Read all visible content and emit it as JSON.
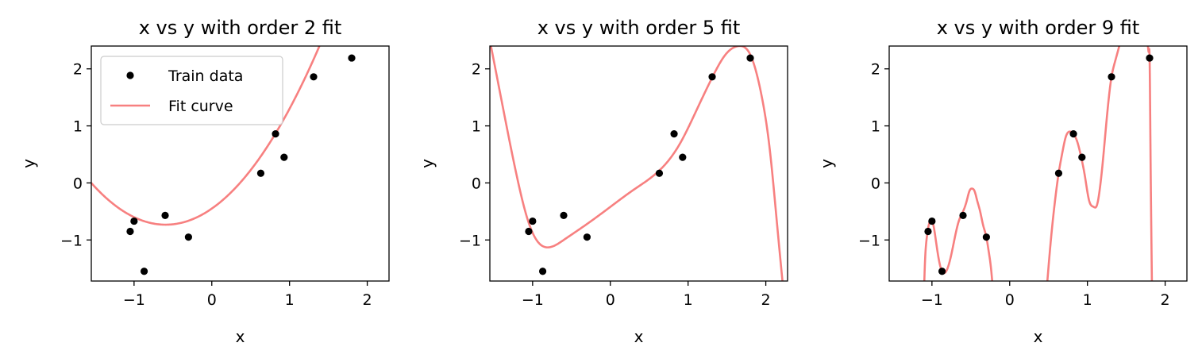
{
  "chart_data": [
    {
      "type": "scatter",
      "title": "x vs y with order 2 fit",
      "xlabel": "x",
      "ylabel": "y",
      "xlim": [
        -1.55,
        2.28
      ],
      "ylim": [
        -1.72,
        2.4
      ],
      "xticks": [
        -1,
        0,
        1,
        2
      ],
      "yticks": [
        -1,
        0,
        1,
        2
      ],
      "legend": {
        "placement": "top-left",
        "entries": [
          "Train data",
          "Fit curve"
        ]
      },
      "fit_order": 2,
      "fit_coefficients": [
        -0.45,
        0.95,
        0.8
      ],
      "series": [
        {
          "name": "Train data",
          "kind": "points",
          "color": "#000000",
          "x": [
            -1.05,
            -1.0,
            -0.87,
            -0.6,
            -0.3,
            0.63,
            0.82,
            0.93,
            1.31,
            1.8
          ],
          "y": [
            -0.85,
            -0.67,
            -1.55,
            -0.57,
            -0.95,
            0.17,
            0.86,
            0.45,
            1.86,
            2.19
          ]
        },
        {
          "name": "Fit curve",
          "kind": "line",
          "color": "#f78080"
        }
      ]
    },
    {
      "type": "scatter",
      "title": "x vs y with order 5 fit",
      "xlabel": "x",
      "ylabel": "y",
      "xlim": [
        -1.55,
        2.28
      ],
      "ylim": [
        -1.72,
        2.4
      ],
      "xticks": [
        -1,
        0,
        1,
        2
      ],
      "yticks": [
        -1,
        0,
        1,
        2
      ],
      "fit_order": 5,
      "fit_anchors": {
        "x": [
          -1.55,
          -1.4,
          -1.2,
          -1.05,
          -0.9,
          -0.8,
          -0.6,
          -0.3,
          0.0,
          0.3,
          0.6,
          0.9,
          1.1,
          1.3,
          1.5,
          1.65,
          1.8,
          1.95,
          2.05,
          2.15,
          2.22
        ],
        "y": [
          2.5,
          1.45,
          0.1,
          -0.7,
          -1.08,
          -1.13,
          -1.0,
          -0.72,
          -0.42,
          -0.12,
          0.18,
          0.7,
          1.25,
          1.82,
          2.28,
          2.4,
          2.25,
          1.5,
          0.6,
          -0.8,
          -1.8
        ]
      },
      "series": [
        {
          "name": "Train data",
          "kind": "points",
          "color": "#000000",
          "x": [
            -1.05,
            -1.0,
            -0.87,
            -0.6,
            -0.3,
            0.63,
            0.82,
            0.93,
            1.31,
            1.8
          ],
          "y": [
            -0.85,
            -0.67,
            -1.55,
            -0.57,
            -0.95,
            0.17,
            0.86,
            0.45,
            1.86,
            2.19
          ]
        },
        {
          "name": "Fit curve",
          "kind": "line",
          "color": "#f78080"
        }
      ]
    },
    {
      "type": "scatter",
      "title": "x vs y with order 9 fit",
      "xlabel": "x",
      "ylabel": "y",
      "xlim": [
        -1.55,
        2.28
      ],
      "ylim": [
        -1.72,
        2.4
      ],
      "xticks": [
        -1,
        0,
        1,
        2
      ],
      "yticks": [
        -1,
        0,
        1,
        2
      ],
      "fit_order": 9,
      "fit_anchors": [
        {
          "x": [
            -1.1,
            -1.09,
            -1.07,
            -1.05,
            -1.02,
            -0.98,
            -0.94,
            -0.9,
            -0.87,
            -0.84,
            -0.8,
            -0.75,
            -0.7,
            -0.65,
            -0.6,
            -0.55,
            -0.52,
            -0.48,
            -0.45,
            -0.42,
            -0.38,
            -0.34,
            -0.3,
            -0.27,
            -0.24,
            -0.22
          ],
          "y": [
            -1.8,
            -1.4,
            -1.0,
            -0.8,
            -0.66,
            -0.75,
            -1.1,
            -1.42,
            -1.55,
            -1.58,
            -1.5,
            -1.25,
            -0.92,
            -0.65,
            -0.5,
            -0.3,
            -0.15,
            -0.1,
            -0.15,
            -0.3,
            -0.5,
            -0.75,
            -0.95,
            -1.2,
            -1.5,
            -1.8
          ]
        },
        {
          "x": [
            0.48,
            0.53,
            0.58,
            0.63,
            0.68,
            0.72,
            0.77,
            0.82,
            0.87,
            0.92,
            0.97,
            1.02,
            1.08,
            1.12,
            1.16,
            1.2,
            1.24,
            1.28,
            1.31,
            1.34,
            1.37,
            1.4,
            1.43
          ],
          "y": [
            -1.8,
            -1.0,
            -0.35,
            0.17,
            0.55,
            0.8,
            0.9,
            0.86,
            0.72,
            0.45,
            0.1,
            -0.3,
            -0.42,
            -0.4,
            -0.1,
            0.4,
            1.0,
            1.55,
            1.86,
            2.05,
            2.2,
            2.35,
            2.5
          ]
        },
        {
          "x": [
            1.76,
            1.77,
            1.78,
            1.79,
            1.8,
            1.81,
            1.82,
            1.83
          ],
          "y": [
            2.5,
            2.45,
            2.38,
            2.3,
            2.19,
            0.8,
            -0.6,
            -1.8
          ]
        }
      ],
      "series": [
        {
          "name": "Train data",
          "kind": "points",
          "color": "#000000",
          "x": [
            -1.05,
            -1.0,
            -0.87,
            -0.6,
            -0.3,
            0.63,
            0.82,
            0.93,
            1.31,
            1.8
          ],
          "y": [
            -0.85,
            -0.67,
            -1.55,
            -0.57,
            -0.95,
            0.17,
            0.86,
            0.45,
            1.86,
            2.19
          ]
        },
        {
          "name": "Fit curve",
          "kind": "line",
          "color": "#f78080"
        }
      ]
    }
  ]
}
